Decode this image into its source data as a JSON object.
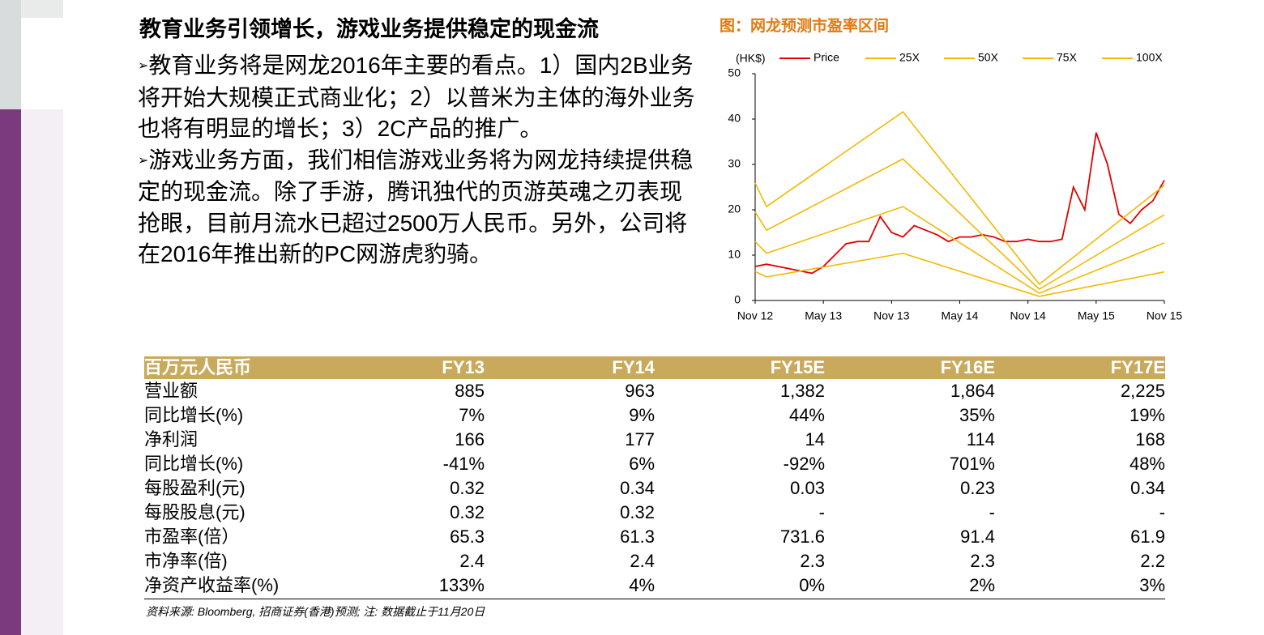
{
  "header": {
    "title": "教育业务引领增长，游戏业务提供稳定的现金流"
  },
  "bullets": [
    "教育业务将是网龙2016年主要的看点。1）国内2B业务将开始大规模正式商业化；2）以普米为主体的海外业务也将有明显的增长；3）2C产品的推广。",
    "游戏业务方面，我们相信游戏业务将为网龙持续提供稳定的现金流。除了手游，腾讯独代的页游英魂之刃表现抢眼，目前月流水已超过2500万人民币。另外，公司将在2016年推出新的PC网游虎豹骑。"
  ],
  "chart_data": {
    "type": "line",
    "title": "图：网龙预测市盈率区间",
    "ylabel": "(HK$)",
    "x": [
      "Nov 12",
      "Dec 12",
      "Jan 13",
      "Feb 13",
      "Mar 13",
      "Apr 13",
      "May 13",
      "Jun 13",
      "Jul 13",
      "Aug 13",
      "Sep 13",
      "Oct 13",
      "Nov 13",
      "Dec 13",
      "Jan 14",
      "Feb 14",
      "Mar 14",
      "Apr 14",
      "May 14",
      "Jun 14",
      "Jul 14",
      "Aug 14",
      "Sep 14",
      "Oct 14",
      "Nov 14",
      "Dec 14",
      "Jan 15",
      "Feb 15",
      "Mar 15",
      "Apr 15",
      "May 15",
      "Jun 15",
      "Jul 15",
      "Aug 15",
      "Sep 15",
      "Oct 15",
      "Nov 15"
    ],
    "xticks": [
      "Nov 12",
      "May 13",
      "Nov 13",
      "May 14",
      "Nov 14",
      "May 15",
      "Nov 15"
    ],
    "ylim": [
      0,
      50
    ],
    "yticks": [
      0,
      10,
      20,
      30,
      40,
      50
    ],
    "series": [
      {
        "name": "Price",
        "color": "#e00000",
        "values": [
          7.5,
          8,
          7.5,
          7,
          6.5,
          6,
          7.5,
          10,
          12.5,
          13,
          13,
          18.5,
          15,
          14,
          16.5,
          15.5,
          14.5,
          13,
          14,
          14,
          14.5,
          14,
          13,
          13,
          13.5,
          13,
          13,
          13.5,
          25,
          20,
          37,
          30,
          19,
          17,
          20,
          22,
          26.5
        ]
      },
      {
        "name": "25X",
        "color": "#f5b800",
        "x": [
          "Nov 12",
          "Dec 12",
          "Dec 13",
          "Dec 14",
          "Nov 15"
        ],
        "values": [
          6.4,
          5.2,
          10.4,
          0.9,
          6.3
        ]
      },
      {
        "name": "50X",
        "color": "#f5b800",
        "x": [
          "Nov 12",
          "Dec 12",
          "Dec 13",
          "Dec 14",
          "Nov 15"
        ],
        "values": [
          13,
          10.4,
          20.7,
          1.6,
          12.7
        ]
      },
      {
        "name": "75X",
        "color": "#f5b800",
        "x": [
          "Nov 12",
          "Dec 12",
          "Dec 13",
          "Dec 14",
          "Nov 15"
        ],
        "values": [
          19.5,
          15.5,
          31.2,
          2.5,
          18.9
        ]
      },
      {
        "name": "100X",
        "color": "#f5b800",
        "x": [
          "Nov 12",
          "Dec 12",
          "Dec 13",
          "Dec 14",
          "Nov 15"
        ],
        "values": [
          25.9,
          20.7,
          41.6,
          3.6,
          25.4
        ]
      }
    ]
  },
  "table": {
    "header": [
      "百万元人民币",
      "FY13",
      "FY14",
      "FY15E",
      "FY16E",
      "FY17E"
    ],
    "rows": [
      [
        "营业额",
        "885",
        "963",
        "1,382",
        "1,864",
        "2,225"
      ],
      [
        "同比增长(%)",
        "7%",
        "9%",
        "44%",
        "35%",
        "19%"
      ],
      [
        "净利润",
        "166",
        "177",
        "14",
        "114",
        "168"
      ],
      [
        "同比增长(%)",
        "-41%",
        "6%",
        "-92%",
        "701%",
        "48%"
      ],
      [
        "每股盈利(元)",
        "0.32",
        "0.34",
        "0.03",
        "0.23",
        "0.34"
      ],
      [
        "每股股息(元)",
        "0.32",
        "0.32",
        "-",
        "-",
        "-"
      ],
      [
        "市盈率(倍）",
        "65.3",
        "61.3",
        "731.6",
        "91.4",
        "61.9"
      ],
      [
        "市净率(倍)",
        "2.4",
        "2.4",
        "2.3",
        "2.3",
        "2.2"
      ],
      [
        "净资产收益率(%)",
        "133%",
        "4%",
        "0%",
        "2%",
        "3%"
      ]
    ]
  },
  "source": "资料来源: Bloomberg, 招商证券(香港)预测; 注: 数据截止于11月20日"
}
